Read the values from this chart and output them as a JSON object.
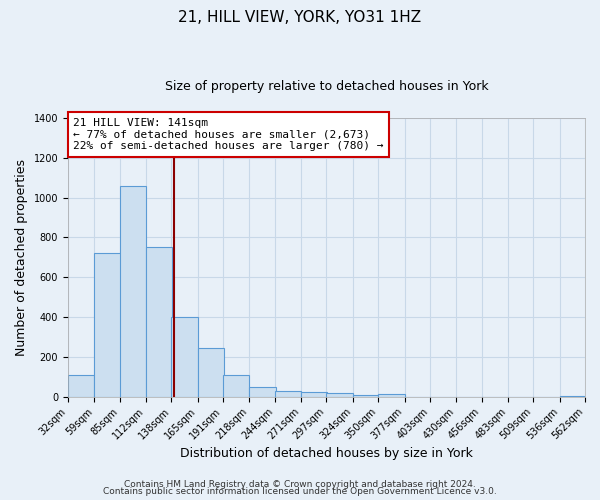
{
  "title": "21, HILL VIEW, YORK, YO31 1HZ",
  "subtitle": "Size of property relative to detached houses in York",
  "xlabel": "Distribution of detached houses by size in York",
  "ylabel": "Number of detached properties",
  "footnote1": "Contains HM Land Registry data © Crown copyright and database right 2024.",
  "footnote2": "Contains public sector information licensed under the Open Government Licence v3.0.",
  "bins": [
    32,
    59,
    85,
    112,
    138,
    165,
    191,
    218,
    244,
    271,
    297,
    324,
    350,
    377,
    403,
    430,
    456,
    483,
    509,
    536,
    562
  ],
  "counts": [
    108,
    720,
    1057,
    750,
    400,
    245,
    110,
    48,
    28,
    25,
    20,
    10,
    13,
    0,
    0,
    0,
    0,
    0,
    0,
    5
  ],
  "bar_color": "#ccdff0",
  "bar_edge_color": "#5b9bd5",
  "vline_x": 141,
  "vline_color": "#8b0000",
  "ylim": [
    0,
    1400
  ],
  "yticks": [
    0,
    200,
    400,
    600,
    800,
    1000,
    1200,
    1400
  ],
  "annotation_title": "21 HILL VIEW: 141sqm",
  "annotation_line1": "← 77% of detached houses are smaller (2,673)",
  "annotation_line2": "22% of semi-detached houses are larger (780) →",
  "bg_color": "#e8f0f8",
  "plot_bg_color": "#e8f0f8",
  "grid_color": "#c8d8e8",
  "title_fontsize": 11,
  "subtitle_fontsize": 9,
  "axis_label_fontsize": 9,
  "tick_fontsize": 7,
  "annotation_fontsize": 8,
  "footnote_fontsize": 6.5
}
